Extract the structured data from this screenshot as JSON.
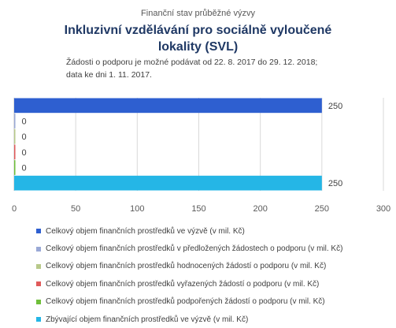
{
  "header": {
    "supertitle": "Finanční stav průběžné výzvy",
    "title": "Inkluzivní vzdělávání pro sociálně vyloučené lokality (SVL)",
    "subtitle_line1": "Žádosti o podporu je možné podávat od 22. 8. 2017 do 29. 12. 2018;",
    "subtitle_line2": "data ke dni 1. 11. 2017."
  },
  "chart_data": {
    "type": "bar",
    "orientation": "horizontal",
    "xlim": [
      0,
      300
    ],
    "xticks": [
      "0",
      "50",
      "100",
      "150",
      "200",
      "250",
      "300"
    ],
    "grid": true,
    "legend_position": "bottom",
    "series": [
      {
        "name": "Celkový objem finančních prostředků ve výzvě (v mil. Kč)",
        "value": 250,
        "label": "250",
        "color": "#2e5fd0"
      },
      {
        "name": "Celkový objem finančních prostředků v předložených žádostech o podporu (v mil. Kč)",
        "value": 0,
        "label": "0",
        "color": "#9aa9d6"
      },
      {
        "name": "Celkový objem finančních prostředků hodnocených žádostí o podporu (v mil. Kč)",
        "value": 0,
        "label": "0",
        "color": "#b8c98a"
      },
      {
        "name": "Celkový objem finančních prostředků vyřazených žádostí o podporu (v mil. Kč)",
        "value": 0,
        "label": "0",
        "color": "#e05a5a"
      },
      {
        "name": "Celkový objem finančních prostředků podpořených žádostí o podporu (v mil. Kč)",
        "value": 0,
        "label": "0",
        "color": "#6fbf3a"
      },
      {
        "name": "Zbývající objem finančních prostředků ve výzvě (v mil. Kč)",
        "value": 250,
        "label": "250",
        "color": "#25b6e6"
      }
    ]
  }
}
